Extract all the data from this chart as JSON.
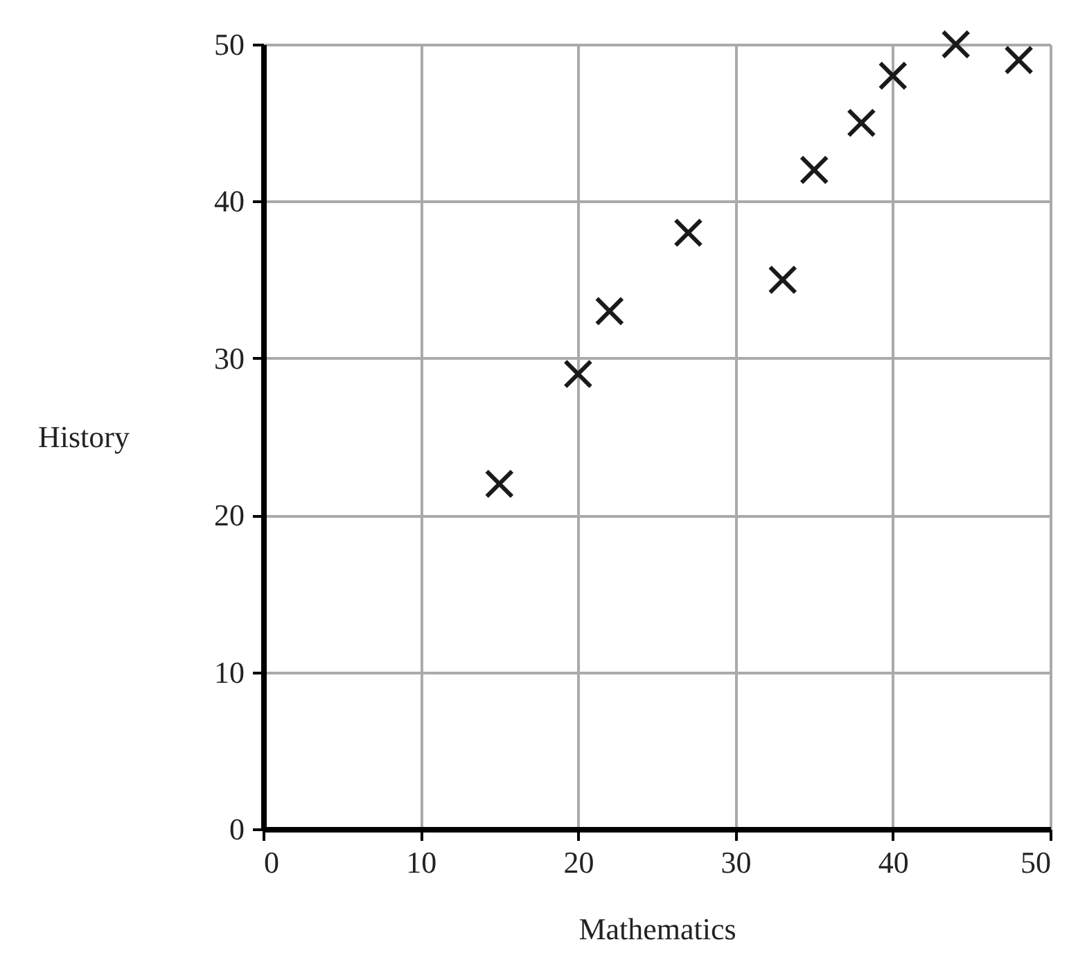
{
  "chart_data": {
    "type": "scatter",
    "xlabel": "Mathematics",
    "ylabel": "History",
    "x": [
      15,
      20,
      22,
      27,
      33,
      35,
      38,
      40,
      44,
      48
    ],
    "values": [
      22,
      29,
      33,
      38,
      35,
      42,
      45,
      48,
      50,
      49
    ],
    "color": "#1a1a1a",
    "marker": "cross",
    "grid": true,
    "xlim": [
      0,
      50
    ],
    "ylim": [
      0,
      50
    ],
    "xticks": [
      0,
      10,
      20,
      30,
      40,
      50
    ],
    "yticks": [
      0,
      10,
      20,
      30,
      40,
      50
    ]
  }
}
